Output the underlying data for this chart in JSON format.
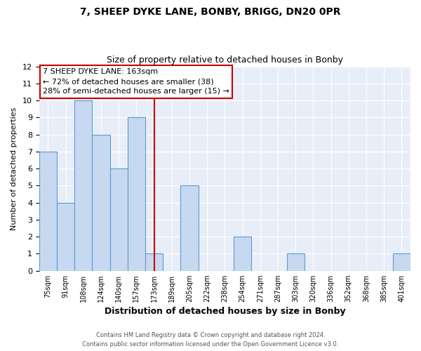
{
  "title": "7, SHEEP DYKE LANE, BONBY, BRIGG, DN20 0PR",
  "subtitle": "Size of property relative to detached houses in Bonby",
  "xlabel": "Distribution of detached houses by size in Bonby",
  "ylabel": "Number of detached properties",
  "bin_labels": [
    "75sqm",
    "91sqm",
    "108sqm",
    "124sqm",
    "140sqm",
    "157sqm",
    "173sqm",
    "189sqm",
    "205sqm",
    "222sqm",
    "238sqm",
    "254sqm",
    "271sqm",
    "287sqm",
    "303sqm",
    "320sqm",
    "336sqm",
    "352sqm",
    "368sqm",
    "385sqm",
    "401sqm"
  ],
  "bar_heights": [
    7,
    4,
    10,
    8,
    6,
    9,
    1,
    0,
    5,
    0,
    0,
    2,
    0,
    0,
    1,
    0,
    0,
    0,
    0,
    0,
    1
  ],
  "bar_color": "#c6d9f0",
  "bar_edge_color": "#5b9bd5",
  "vline_x": 6,
  "vline_color": "#cc0000",
  "ylim": [
    0,
    12
  ],
  "yticks": [
    0,
    1,
    2,
    3,
    4,
    5,
    6,
    7,
    8,
    9,
    10,
    11,
    12
  ],
  "annotation_line1": "7 SHEEP DYKE LANE: 163sqm",
  "annotation_line2": "← 72% of detached houses are smaller (38)",
  "annotation_line3": "28% of semi-detached houses are larger (15) →",
  "annotation_box_color": "#ffffff",
  "annotation_box_edge": "#cc0000",
  "footer1": "Contains HM Land Registry data © Crown copyright and database right 2024.",
  "footer2": "Contains public sector information licensed under the Open Government Licence v3.0.",
  "background_color": "#ffffff",
  "plot_bg_color": "#e8eef7",
  "grid_color": "#ffffff",
  "title_fontsize": 10,
  "subtitle_fontsize": 9
}
